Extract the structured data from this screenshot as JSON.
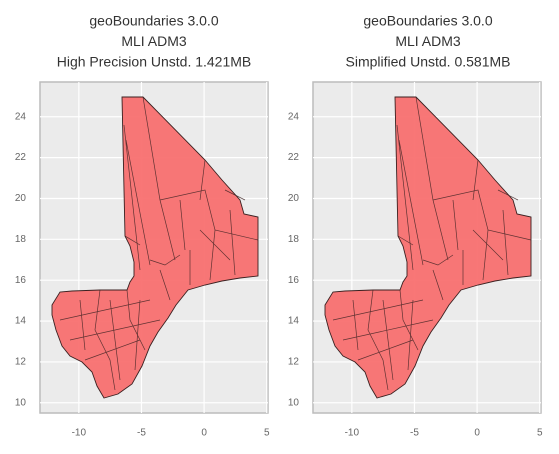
{
  "chart_data": [
    {
      "type": "map",
      "title_lines": [
        "geoBoundaries 3.0.0",
        "MLI ADM3",
        "High Precision Unstd. 1.421MB"
      ],
      "xlim": [
        -13.1,
        5.1
      ],
      "ylim": [
        9.5,
        25.7
      ],
      "xticks": [
        -10,
        -5,
        0,
        5
      ],
      "yticks": [
        10,
        12,
        14,
        16,
        18,
        20,
        22,
        24
      ],
      "grid": true,
      "color": "#f87070"
    },
    {
      "type": "map",
      "title_lines": [
        "geoBoundaries 3.0.0",
        "MLI ADM3",
        "Simplified Unstd. 0.581MB"
      ],
      "xlim": [
        -13.1,
        5.1
      ],
      "ylim": [
        9.5,
        25.7
      ],
      "xticks": [
        -10,
        -5,
        0,
        5
      ],
      "yticks": [
        10,
        12,
        14,
        16,
        18,
        20,
        22,
        24
      ],
      "grid": true,
      "color": "#f87070"
    }
  ]
}
